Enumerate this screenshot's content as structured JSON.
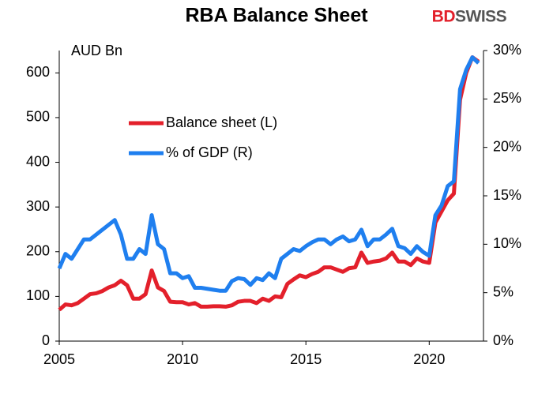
{
  "chart_data": {
    "type": "line",
    "title": "RBA Balance Sheet",
    "brand": {
      "first": "BD",
      "second": "SWISS"
    },
    "y_annotation": "AUD Bn",
    "x": [
      2005,
      2005.25,
      2005.5,
      2005.75,
      2006,
      2006.25,
      2006.5,
      2006.75,
      2007,
      2007.25,
      2007.5,
      2007.75,
      2008,
      2008.25,
      2008.5,
      2008.75,
      2009,
      2009.25,
      2009.5,
      2009.75,
      2010,
      2010.25,
      2010.5,
      2010.75,
      2011,
      2011.25,
      2011.5,
      2011.75,
      2012,
      2012.25,
      2012.5,
      2012.75,
      2013,
      2013.25,
      2013.5,
      2013.75,
      2014,
      2014.25,
      2014.5,
      2014.75,
      2015,
      2015.25,
      2015.5,
      2015.75,
      2016,
      2016.25,
      2016.5,
      2016.75,
      2017,
      2017.25,
      2017.5,
      2017.75,
      2018,
      2018.25,
      2018.5,
      2018.75,
      2019,
      2019.25,
      2019.5,
      2019.75,
      2020,
      2020.25,
      2020.5,
      2020.75,
      2021,
      2021.25,
      2021.5,
      2021.75,
      2022
    ],
    "series": [
      {
        "name": "Balance sheet (L)",
        "color": "#e3202b",
        "axis": "y",
        "values": [
          70,
          82,
          80,
          85,
          95,
          105,
          107,
          112,
          120,
          125,
          135,
          125,
          95,
          95,
          105,
          158,
          120,
          112,
          88,
          87,
          87,
          82,
          85,
          77,
          77,
          78,
          78,
          77,
          80,
          88,
          90,
          90,
          85,
          95,
          90,
          100,
          98,
          128,
          138,
          147,
          143,
          150,
          155,
          165,
          165,
          160,
          155,
          163,
          165,
          198,
          175,
          178,
          180,
          185,
          198,
          178,
          178,
          170,
          185,
          178,
          175,
          265,
          290,
          315,
          330,
          540,
          600,
          635,
          625
        ]
      },
      {
        "name": "% of GDP (R)",
        "color": "#1f7fef",
        "axis": "y2",
        "values": [
          7.5,
          9,
          8.5,
          9.5,
          10.5,
          10.5,
          11,
          11.5,
          12,
          12.5,
          11,
          8.5,
          8.5,
          9.5,
          9,
          13,
          10,
          9.5,
          7,
          7,
          6.5,
          6.7,
          5.5,
          5.5,
          5.4,
          5.3,
          5.2,
          5.2,
          6.2,
          6.5,
          6.4,
          5.8,
          6.5,
          6.3,
          7,
          6.5,
          8.5,
          9,
          9.5,
          9.3,
          9.8,
          10.2,
          10.5,
          10.5,
          10,
          10.5,
          10.8,
          10.3,
          10.5,
          11.5,
          9.8,
          10.5,
          10.5,
          11,
          11.6,
          9.8,
          9.6,
          9,
          9.8,
          9.2,
          8.8,
          13,
          14,
          16,
          16.5,
          26,
          28,
          29.3,
          28.7
        ]
      }
    ],
    "xlim": [
      2005,
      2022.2
    ],
    "xticks": [
      2005,
      2010,
      2015,
      2020
    ],
    "ylim": [
      0,
      650
    ],
    "yticks": [
      0,
      100,
      200,
      300,
      400,
      500,
      600
    ],
    "y2lim": [
      0,
      30
    ],
    "y2ticks": [
      {
        "value": 0,
        "label": "0%"
      },
      {
        "value": 5,
        "label": "5%"
      },
      {
        "value": 10,
        "label": "10%"
      },
      {
        "value": 15,
        "label": "15%"
      },
      {
        "value": 20,
        "label": "20%"
      },
      {
        "value": 25,
        "label": "25%"
      },
      {
        "value": 30,
        "label": "30%"
      }
    ]
  }
}
